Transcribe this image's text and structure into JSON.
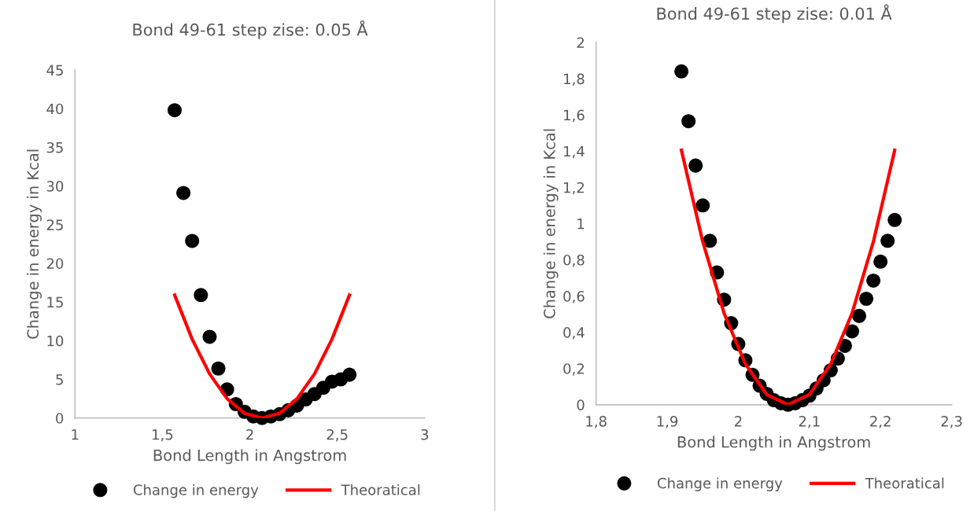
{
  "chart_data": [
    {
      "type": "scatter",
      "title": "Bond 49-61 step zise: 0.05 Å",
      "xlabel": "Bond Length in Angstrom",
      "ylabel": "Change in energy in Kcal",
      "xlim": [
        1,
        3
      ],
      "xticks": [
        1,
        {
          "value": 1.5,
          "label": "1,5"
        },
        2,
        {
          "value": 2.5,
          "label": "2,5"
        },
        3
      ],
      "ylim": [
        0,
        45
      ],
      "yticks": [
        0,
        5,
        10,
        15,
        20,
        25,
        30,
        35,
        40,
        45
      ],
      "grid": false,
      "legend": "bottom",
      "series": [
        {
          "name": "Change in energy",
          "color": "#000000",
          "marker": "circle",
          "x": [
            1.57,
            1.62,
            1.67,
            1.72,
            1.77,
            1.82,
            1.87,
            1.92,
            1.97,
            2.02,
            2.07,
            2.12,
            2.17,
            2.22,
            2.27,
            2.32,
            2.37,
            2.42,
            2.47,
            2.52,
            2.57
          ],
          "values": [
            39.8,
            29.1,
            22.9,
            15.9,
            10.5,
            6.4,
            3.7,
            1.8,
            0.8,
            0.2,
            0.0,
            0.2,
            0.5,
            1.0,
            1.6,
            2.4,
            3.1,
            3.9,
            4.7,
            5.0,
            5.6
          ]
        },
        {
          "name": "Theoratical",
          "type": "line",
          "color": "#ff0000",
          "line_style": "solid",
          "x": [
            1.57,
            1.67,
            1.77,
            1.87,
            1.97,
            2.07,
            2.17,
            2.27,
            2.37,
            2.47,
            2.57
          ],
          "values": [
            15.9,
            10.2,
            5.7,
            2.5,
            0.6,
            0.0,
            0.6,
            2.5,
            5.7,
            10.2,
            15.9
          ]
        }
      ]
    },
    {
      "type": "scatter",
      "title": "Bond 49-61 step zise: 0.01 Å",
      "xlabel": "Bond Length in Angstrom",
      "ylabel": "Change in energy in Kcal",
      "xlim": [
        1.8,
        2.3
      ],
      "xticks": [
        {
          "value": 1.8,
          "label": "1,8"
        },
        {
          "value": 1.9,
          "label": "1,9"
        },
        2,
        {
          "value": 2.1,
          "label": "2,1"
        },
        {
          "value": 2.2,
          "label": "2,2"
        },
        {
          "value": 2.3,
          "label": "2,3"
        }
      ],
      "ylim": [
        0,
        2
      ],
      "yticks": [
        0,
        {
          "value": 0.2,
          "label": "0,2"
        },
        {
          "value": 0.4,
          "label": "0,4"
        },
        {
          "value": 0.6,
          "label": "0,6"
        },
        {
          "value": 0.8,
          "label": "0,8"
        },
        1,
        {
          "value": 1.2,
          "label": "1,2"
        },
        {
          "value": 1.4,
          "label": "1,4"
        },
        {
          "value": 1.6,
          "label": "1,6"
        },
        {
          "value": 1.8,
          "label": "1,8"
        },
        2
      ],
      "grid": false,
      "legend": "bottom",
      "series": [
        {
          "name": "Change in energy",
          "color": "#000000",
          "marker": "circle",
          "x": [
            1.92,
            1.93,
            1.94,
            1.95,
            1.96,
            1.97,
            1.98,
            1.99,
            2.0,
            2.01,
            2.02,
            2.03,
            2.04,
            2.05,
            2.06,
            2.07,
            2.08,
            2.09,
            2.1,
            2.11,
            2.12,
            2.13,
            2.14,
            2.15,
            2.16,
            2.17,
            2.18,
            2.19,
            2.2,
            2.21,
            2.22
          ],
          "values": [
            1.84,
            1.565,
            1.32,
            1.1,
            0.905,
            0.73,
            0.58,
            0.45,
            0.335,
            0.245,
            0.165,
            0.105,
            0.06,
            0.025,
            0.008,
            0.0,
            0.008,
            0.025,
            0.05,
            0.09,
            0.135,
            0.19,
            0.255,
            0.325,
            0.405,
            0.49,
            0.585,
            0.685,
            0.79,
            0.905,
            1.02
          ]
        },
        {
          "name": "Theoratical",
          "type": "line",
          "color": "#ff0000",
          "line_style": "solid",
          "x": [
            1.92,
            1.95,
            1.98,
            2.01,
            2.04,
            2.07,
            2.1,
            2.13,
            2.16,
            2.19,
            2.22
          ],
          "values": [
            1.405,
            0.9,
            0.505,
            0.225,
            0.056,
            0.0,
            0.056,
            0.225,
            0.505,
            0.9,
            1.405
          ]
        }
      ]
    }
  ]
}
